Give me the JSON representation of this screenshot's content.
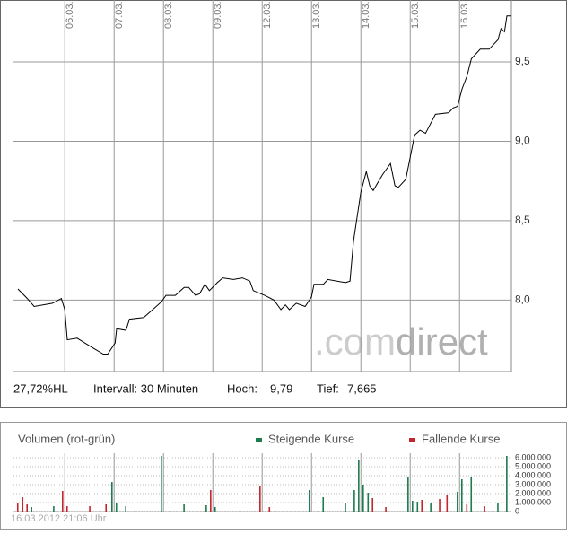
{
  "chart_data": [
    {
      "type": "line",
      "color": "#000000",
      "x": [
        -0.95,
        -0.76,
        -0.62,
        -0.25,
        -0.07,
        0,
        0.05,
        0.25,
        0.51,
        0.78,
        0.87,
        1.02,
        1.05,
        1.24,
        1.31,
        1.6,
        1.78,
        1.96,
        2.05,
        2.24,
        2.42,
        2.51,
        2.65,
        2.73,
        2.84,
        2.93,
        3.09,
        3.2,
        3.42,
        3.6,
        3.75,
        3.82,
        4.05,
        4.24,
        4.38,
        4.47,
        4.55,
        4.69,
        4.87,
        5.0,
        5.05,
        5.24,
        5.33,
        5.69,
        5.78,
        5.85,
        6.0,
        6.11,
        6.18,
        6.25,
        6.44,
        6.6,
        6.69,
        6.76,
        6.91,
        7.02,
        7.09,
        7.2,
        7.31,
        7.51,
        7.78,
        7.87,
        7.96,
        8.05,
        8.15,
        8.24,
        8.42,
        8.6,
        8.78,
        8.84,
        8.91,
        8.96,
        9.05
      ],
      "values": [
        8.07,
        8.01,
        7.96,
        7.98,
        8.01,
        7.94,
        7.75,
        7.76,
        7.71,
        7.66,
        7.66,
        7.73,
        7.82,
        7.81,
        7.88,
        7.89,
        7.94,
        7.99,
        8.03,
        8.03,
        8.08,
        8.08,
        8.03,
        8.04,
        8.1,
        8.06,
        8.11,
        8.14,
        8.13,
        8.14,
        8.12,
        8.06,
        8.03,
        8.0,
        7.94,
        7.97,
        7.94,
        7.98,
        7.96,
        8.02,
        8.1,
        8.1,
        8.13,
        8.11,
        8.12,
        8.37,
        8.68,
        8.81,
        8.72,
        8.69,
        8.79,
        8.86,
        8.72,
        8.71,
        8.76,
        8.93,
        9.04,
        9.07,
        9.05,
        9.17,
        9.18,
        9.21,
        9.22,
        9.33,
        9.41,
        9.52,
        9.58,
        9.58,
        9.64,
        9.71,
        9.69,
        9.79,
        9.79
      ],
      "xlim": [
        -1.04,
        9.05
      ],
      "xticks": [
        {
          "value": 0,
          "label": "06.03."
        },
        {
          "value": 1,
          "label": "07.03."
        },
        {
          "value": 2,
          "label": "08.03."
        },
        {
          "value": 3,
          "label": "09.03."
        },
        {
          "value": 4,
          "label": "12.03."
        },
        {
          "value": 5,
          "label": "13.03."
        },
        {
          "value": 6,
          "label": "14.03."
        },
        {
          "value": 7,
          "label": "15.03."
        },
        {
          "value": 8,
          "label": "16.03."
        }
      ],
      "ylim": [
        7.55,
        9.89
      ],
      "yticks": [
        {
          "value": 8.0,
          "label": "8,0"
        },
        {
          "value": 8.5,
          "label": "8,5"
        },
        {
          "value": 9.0,
          "label": "9,0"
        },
        {
          "value": 9.5,
          "label": "9,5"
        }
      ],
      "grid": true,
      "annotations": [
        "27,72%HL",
        "Intervall: 30 Minuten",
        "Hoch:",
        "9,79",
        "Tief:",
        "7,665"
      ],
      "watermark": [
        ".com",
        "direct"
      ]
    },
    {
      "type": "bar",
      "title": "Volumen (rot-grün)",
      "series": [
        {
          "name": "Steigende Kurse",
          "color": "#1e7a50",
          "x": [
            -0.67,
            -0.22,
            0.96,
            1.05,
            1.24,
            1.96,
            2.42,
            2.87,
            3.05,
            4.96,
            5.24,
            5.69,
            5.87,
            5.96,
            6.05,
            6.15,
            6.96,
            7.05,
            7.15,
            7.42,
            7.96,
            8.05,
            8.24,
            8.78,
            8.96
          ],
          "values": [
            500000,
            600000,
            3300000,
            1000000,
            600000,
            6200000,
            800000,
            700000,
            500000,
            2400000,
            1600000,
            900000,
            2400000,
            5800000,
            3000000,
            2100000,
            3800000,
            1200000,
            1100000,
            1000000,
            2200000,
            3600000,
            3900000,
            900000,
            6200000
          ]
        },
        {
          "name": "Fallende Kurse",
          "color": "#c0262c",
          "x": [
            -0.95,
            -0.85,
            -0.76,
            -0.04,
            0.05,
            0.51,
            0.84,
            2.96,
            3.96,
            4.15,
            6.24,
            6.51,
            7.24,
            7.6,
            7.75,
            8.15,
            8.51
          ],
          "values": [
            1000000,
            1600000,
            800000,
            2300000,
            600000,
            600000,
            800000,
            2400000,
            2800000,
            500000,
            1500000,
            500000,
            1300000,
            1400000,
            1800000,
            800000,
            600000
          ]
        }
      ],
      "xlim": [
        -1.04,
        9.05
      ],
      "ylim": [
        0,
        6500000
      ],
      "yticks": [
        0,
        {
          "value": 1000000,
          "label": "1.000.000"
        },
        {
          "value": 2000000,
          "label": "2.000.000"
        },
        {
          "value": 3000000,
          "label": "3.000.000"
        },
        {
          "value": 4000000,
          "label": "4.000.000"
        },
        {
          "value": 5000000,
          "label": "5.000.000"
        },
        {
          "value": 6000000,
          "label": "6.000.000"
        }
      ],
      "grid": true,
      "footer": "16.03.2012 21:06 Uhr"
    }
  ]
}
